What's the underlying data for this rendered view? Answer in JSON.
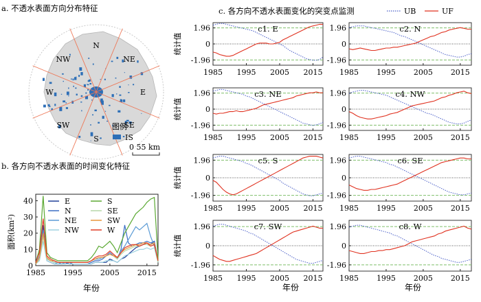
{
  "panel_a": {
    "title": "a. 不透水表面方向分布特征",
    "directions": [
      "N",
      "NE",
      "E",
      "SE",
      "S",
      "SW",
      "W",
      "NW"
    ],
    "legend_title": "图例",
    "legend_label": "IS",
    "scale_label": "0   55 km",
    "colors": {
      "land": "#d9d9d9",
      "impervious": "#2e6fb7",
      "rays": "#ee7756",
      "ring": "#bdbdbd"
    }
  },
  "chart_data": [
    {
      "type": "line",
      "title": "b. 各方向不透水表面的时间变化特征",
      "xlabel": "年份",
      "ylabel": "面积(km²)",
      "xlim": [
        1985,
        2018
      ],
      "ylim": [
        0,
        44
      ],
      "xticks": [
        1985,
        1995,
        2005,
        2015
      ],
      "yticks": [
        0,
        10,
        20,
        30,
        40
      ],
      "legend_columns": [
        [
          "E",
          "N",
          "NE",
          "NW"
        ],
        [
          "S",
          "SE",
          "SW",
          "W"
        ]
      ],
      "x": [
        1985,
        1986,
        1987,
        1988,
        1989,
        1990,
        1991,
        1992,
        1993,
        1994,
        1995,
        1996,
        1997,
        1998,
        1999,
        2000,
        2001,
        2002,
        2003,
        2004,
        2005,
        2006,
        2007,
        2008,
        2009,
        2010,
        2011,
        2012,
        2013,
        2014,
        2015,
        2016,
        2017,
        2018
      ],
      "series": [
        {
          "name": "E",
          "color": "#1f3f99",
          "values": [
            1,
            4,
            25,
            3,
            2,
            1,
            1,
            1,
            2,
            1,
            1,
            1,
            1,
            1,
            1,
            1,
            2,
            2,
            2,
            2,
            4,
            3,
            2,
            4,
            5,
            7,
            9,
            11,
            12,
            13,
            14,
            13,
            15,
            2
          ]
        },
        {
          "name": "N",
          "color": "#3a6ec4",
          "values": [
            1,
            5,
            20,
            4,
            3,
            2,
            2,
            1,
            1,
            2,
            1,
            1,
            1,
            1,
            1,
            2,
            3,
            3,
            4,
            6,
            8,
            6,
            4,
            10,
            25,
            14,
            12,
            13,
            14,
            14,
            15,
            14,
            15,
            3
          ]
        },
        {
          "name": "NE",
          "color": "#5b9bd5",
          "values": [
            1,
            6,
            22,
            5,
            3,
            2,
            1,
            1,
            2,
            2,
            2,
            2,
            2,
            2,
            2,
            3,
            4,
            4,
            5,
            6,
            7,
            6,
            5,
            9,
            12,
            16,
            20,
            24,
            22,
            24,
            26,
            18,
            12,
            3
          ]
        },
        {
          "name": "NW",
          "color": "#9fd3e0",
          "values": [
            1,
            3,
            15,
            3,
            2,
            1,
            1,
            1,
            1,
            1,
            1,
            1,
            1,
            1,
            1,
            1,
            2,
            2,
            2,
            3,
            3,
            3,
            2,
            4,
            6,
            7,
            8,
            9,
            10,
            10,
            11,
            10,
            11,
            2
          ]
        },
        {
          "name": "S",
          "color": "#5aa832",
          "values": [
            2,
            10,
            43,
            8,
            5,
            4,
            3,
            3,
            3,
            3,
            3,
            3,
            3,
            3,
            3,
            5,
            8,
            12,
            11,
            13,
            15,
            12,
            8,
            14,
            20,
            24,
            28,
            32,
            34,
            36,
            39,
            41,
            42,
            4
          ]
        },
        {
          "name": "SE",
          "color": "#b6d7a8",
          "values": [
            1,
            4,
            18,
            4,
            3,
            2,
            2,
            2,
            2,
            2,
            2,
            2,
            2,
            2,
            2,
            3,
            4,
            5,
            5,
            6,
            7,
            6,
            4,
            7,
            9,
            10,
            11,
            12,
            12,
            13,
            13,
            12,
            13,
            2
          ]
        },
        {
          "name": "SW",
          "color": "#e8963b",
          "values": [
            1,
            5,
            20,
            5,
            3,
            3,
            2,
            2,
            2,
            2,
            2,
            2,
            2,
            2,
            2,
            3,
            4,
            5,
            5,
            6,
            7,
            6,
            5,
            8,
            10,
            11,
            12,
            13,
            13,
            14,
            14,
            13,
            14,
            3
          ]
        },
        {
          "name": "W",
          "color": "#e03a24",
          "values": [
            2,
            8,
            29,
            6,
            4,
            3,
            2,
            2,
            2,
            2,
            2,
            2,
            2,
            2,
            2,
            3,
            5,
            6,
            6,
            7,
            9,
            7,
            5,
            8,
            11,
            12,
            13,
            13,
            12,
            13,
            14,
            12,
            13,
            3
          ]
        }
      ]
    },
    {
      "type": "line",
      "title": "c. 各方向不透水表面变化的突变点监测",
      "ylabel": "统计值",
      "xlabel": "年份",
      "xlim": [
        1985,
        2018
      ],
      "ylim": [
        -2.6,
        2.6
      ],
      "xticks": [
        1985,
        1995,
        2005,
        2015
      ],
      "yticks": [
        1.96,
        0,
        -1.96
      ],
      "ytick_labels": [
        "1.96",
        "0",
        "-1.96"
      ],
      "legend": [
        {
          "name": "UB",
          "color": "#4a5fc8",
          "style": "dotted"
        },
        {
          "name": "UF",
          "color": "#e0311f",
          "style": "solid"
        }
      ],
      "reference_line_colors": {
        "upper": "#7fbf6a",
        "zero": "#555555",
        "lower": "#7fbf6a"
      },
      "x_start": 1985,
      "x_step": 1,
      "panels": [
        {
          "label": "c1. E",
          "uf": [
            -1.0,
            -1.1,
            -1.3,
            -1.4,
            -1.5,
            -1.5,
            -1.4,
            -1.2,
            -1.0,
            -0.8,
            -0.6,
            -0.4,
            -0.2,
            0.0,
            0.1,
            0.1,
            0.1,
            0.0,
            0.0,
            0.1,
            0.2,
            0.5,
            0.7,
            0.9,
            1.1,
            1.3,
            1.5,
            1.7,
            1.9,
            2.1,
            2.2,
            2.3,
            2.4,
            2.4
          ],
          "ub": [
            2.3,
            2.4,
            2.5,
            2.5,
            2.4,
            2.3,
            2.2,
            2.1,
            2.0,
            1.9,
            1.8,
            1.7,
            1.6,
            1.4,
            1.2,
            1.0,
            0.8,
            0.6,
            0.4,
            0.2,
            0.0,
            -0.2,
            -0.5,
            -0.8,
            -1.0,
            -1.2,
            -1.4,
            -1.6,
            -1.8,
            -1.9,
            -2.0,
            -2.0,
            -1.9,
            -1.6
          ]
        },
        {
          "label": "c2. N",
          "uf": [
            -0.6,
            -0.7,
            -0.6,
            -0.5,
            -0.6,
            -0.7,
            -0.8,
            -0.8,
            -0.7,
            -0.6,
            -0.5,
            -0.5,
            -0.4,
            -0.4,
            -0.3,
            -0.2,
            -0.1,
            0.0,
            0.1,
            0.3,
            0.5,
            0.7,
            0.9,
            1.0,
            1.2,
            1.4,
            1.5,
            1.7,
            1.8,
            1.9,
            2.0,
            1.9,
            1.8,
            1.8
          ],
          "ub": [
            2.0,
            2.1,
            2.2,
            2.2,
            2.2,
            2.1,
            2.0,
            1.9,
            1.8,
            1.7,
            1.6,
            1.5,
            1.4,
            1.2,
            1.0,
            0.9,
            0.7,
            0.5,
            0.3,
            0.1,
            -0.1,
            -0.3,
            -0.5,
            -0.7,
            -0.9,
            -1.1,
            -1.3,
            -1.4,
            -1.5,
            -1.6,
            -1.6,
            -1.5,
            -1.3,
            -1.2
          ]
        },
        {
          "label": "c3. NE",
          "uf": [
            -0.5,
            -0.6,
            -0.5,
            -0.5,
            -0.4,
            -0.3,
            -0.3,
            -0.2,
            -0.3,
            -0.3,
            -0.2,
            -0.1,
            0.0,
            0.1,
            0.3,
            0.5,
            0.6,
            0.7,
            0.8,
            0.9,
            1.0,
            1.1,
            1.2,
            1.3,
            1.4,
            1.6,
            1.7,
            1.8,
            1.9,
            2.0,
            2.0,
            2.1,
            2.0,
            2.0
          ],
          "ub": [
            2.2,
            2.3,
            2.4,
            2.4,
            2.3,
            2.2,
            2.1,
            2.0,
            1.9,
            1.8,
            1.6,
            1.5,
            1.3,
            1.1,
            0.9,
            0.7,
            0.5,
            0.3,
            0.1,
            -0.1,
            -0.3,
            -0.5,
            -0.7,
            -0.9,
            -1.1,
            -1.3,
            -1.5,
            -1.7,
            -1.8,
            -1.9,
            -2.0,
            -1.9,
            -1.8,
            -1.6
          ]
        },
        {
          "label": "c4. NW",
          "uf": [
            -0.3,
            -0.5,
            -0.8,
            -1.0,
            -1.1,
            -1.2,
            -1.2,
            -1.1,
            -1.0,
            -0.9,
            -0.8,
            -0.6,
            -0.5,
            -0.4,
            -0.2,
            0.0,
            0.2,
            0.4,
            0.5,
            0.6,
            0.7,
            0.8,
            0.9,
            1.0,
            1.2,
            1.4,
            1.5,
            1.7,
            1.8,
            2.0,
            2.1,
            2.2,
            2.0,
            1.9
          ],
          "ub": [
            1.9,
            2.1,
            2.2,
            2.3,
            2.3,
            2.2,
            2.1,
            2.0,
            1.9,
            1.8,
            1.7,
            1.5,
            1.3,
            1.1,
            0.9,
            0.7,
            0.5,
            0.3,
            0.1,
            -0.1,
            -0.3,
            -0.5,
            -0.6,
            -0.8,
            -1.0,
            -1.2,
            -1.4,
            -1.6,
            -1.7,
            -1.8,
            -1.8,
            -1.7,
            -1.5,
            -1.3
          ]
        },
        {
          "label": "c5. S",
          "uf": [
            -0.3,
            -0.5,
            -0.9,
            -1.3,
            -1.6,
            -1.8,
            -1.9,
            -1.8,
            -1.6,
            -1.4,
            -1.2,
            -1.0,
            -0.8,
            -0.6,
            -0.4,
            -0.2,
            0.0,
            0.2,
            0.4,
            0.6,
            0.8,
            1.0,
            1.2,
            1.4,
            1.6,
            1.8,
            2.0,
            2.2,
            2.3,
            2.4,
            2.4,
            2.4,
            2.3,
            2.2
          ],
          "ub": [
            2.2,
            2.3,
            2.4,
            2.4,
            2.3,
            2.2,
            2.1,
            2.0,
            1.9,
            1.8,
            1.6,
            1.5,
            1.3,
            1.1,
            0.9,
            0.7,
            0.5,
            0.3,
            0.1,
            -0.1,
            -0.3,
            -0.6,
            -0.8,
            -1.0,
            -1.2,
            -1.4,
            -1.6,
            -1.8,
            -1.9,
            -2.0,
            -2.0,
            -1.9,
            -1.8,
            -1.7
          ]
        },
        {
          "label": "c6. SE",
          "uf": [
            -0.8,
            -1.0,
            -1.2,
            -1.3,
            -1.4,
            -1.4,
            -1.3,
            -1.3,
            -1.2,
            -1.1,
            -1.0,
            -0.9,
            -0.8,
            -0.7,
            -0.5,
            -0.3,
            -0.1,
            0.1,
            0.3,
            0.5,
            0.7,
            0.9,
            1.1,
            1.3,
            1.5,
            1.7,
            1.8,
            1.9,
            2.0,
            2.1,
            2.2,
            2.2,
            2.1,
            2.1
          ],
          "ub": [
            2.2,
            2.3,
            2.4,
            2.4,
            2.3,
            2.2,
            2.1,
            2.0,
            1.9,
            1.8,
            1.7,
            1.5,
            1.4,
            1.2,
            1.0,
            0.8,
            0.6,
            0.4,
            0.2,
            0.0,
            -0.2,
            -0.4,
            -0.6,
            -0.8,
            -1.0,
            -1.2,
            -1.4,
            -1.6,
            -1.7,
            -1.8,
            -1.9,
            -1.9,
            -1.8,
            -1.7
          ]
        },
        {
          "label": "c7. SW",
          "uf": [
            -1.0,
            -1.2,
            -1.4,
            -1.5,
            -1.6,
            -1.6,
            -1.5,
            -1.4,
            -1.3,
            -1.2,
            -1.1,
            -1.0,
            -0.9,
            -0.8,
            -0.6,
            -0.4,
            -0.2,
            0.0,
            0.2,
            0.4,
            0.6,
            0.8,
            1.0,
            1.2,
            1.4,
            1.5,
            1.6,
            1.7,
            1.8,
            1.9,
            2.0,
            1.9,
            1.8,
            1.8
          ],
          "ub": [
            2.0,
            2.1,
            2.2,
            2.2,
            2.1,
            2.0,
            1.9,
            1.8,
            1.7,
            1.6,
            1.5,
            1.3,
            1.2,
            1.0,
            0.8,
            0.6,
            0.4,
            0.2,
            0.0,
            -0.2,
            -0.4,
            -0.6,
            -0.8,
            -1.0,
            -1.2,
            -1.4,
            -1.5,
            -1.6,
            -1.7,
            -1.8,
            -1.8,
            -1.7,
            -1.6,
            -1.5
          ]
        },
        {
          "label": "c8. W",
          "uf": [
            -0.5,
            -0.6,
            -0.7,
            -0.8,
            -0.8,
            -0.7,
            -0.6,
            -0.6,
            -0.5,
            -0.5,
            -0.4,
            -0.4,
            -0.3,
            -0.2,
            -0.1,
            0.0,
            0.2,
            0.4,
            0.5,
            0.6,
            0.7,
            0.8,
            0.9,
            1.0,
            1.2,
            1.3,
            1.5,
            1.6,
            1.7,
            1.8,
            1.9,
            2.0,
            1.8,
            1.7
          ],
          "ub": [
            1.9,
            2.0,
            2.1,
            2.1,
            2.0,
            1.9,
            1.8,
            1.7,
            1.6,
            1.5,
            1.4,
            1.3,
            1.1,
            1.0,
            0.8,
            0.6,
            0.4,
            0.2,
            0.0,
            -0.2,
            -0.4,
            -0.6,
            -0.8,
            -1.0,
            -1.1,
            -1.3,
            -1.4,
            -1.5,
            -1.6,
            -1.7,
            -1.7,
            -1.6,
            -1.5,
            -1.4
          ]
        }
      ]
    }
  ]
}
